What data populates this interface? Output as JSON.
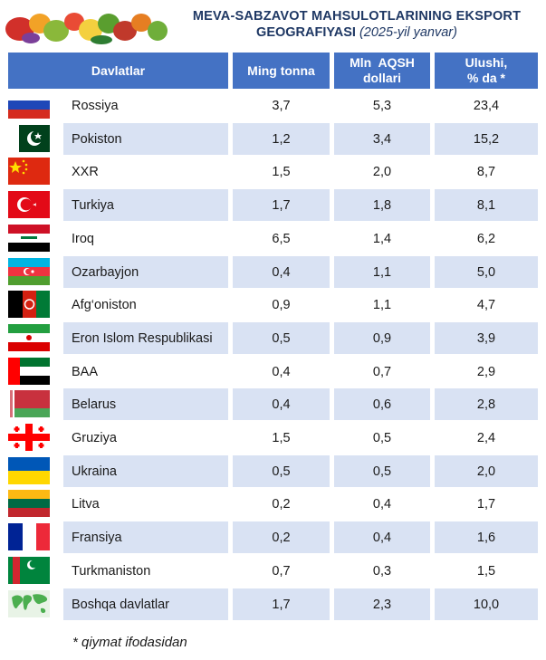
{
  "title": {
    "line1": "MEVA-SABZAVOT MAHSULOTLARINING EKSPORT",
    "line2_bold": "GEOGRAFIYASI",
    "line2_italic": "(2025-yil yanvar)"
  },
  "table": {
    "headers": {
      "country": "Davlatlar",
      "tonnes": "Ming tonna",
      "usd_line1": "Mln  AQSH",
      "usd_line2": "dollari",
      "share_line1": "Ulushi,",
      "share_line2": "% da *"
    },
    "rows": [
      {
        "flag": "russia-flag-icon",
        "country": "Rossiya",
        "tonnes": "3,7",
        "usd": "5,3",
        "share": "23,4"
      },
      {
        "flag": "pakistan-flag-icon",
        "country": "Pokiston",
        "tonnes": "1,2",
        "usd": "3,4",
        "share": "15,2"
      },
      {
        "flag": "china-flag-icon",
        "country": "XXR",
        "tonnes": "1,5",
        "usd": "2,0",
        "share": "8,7"
      },
      {
        "flag": "turkey-flag-icon",
        "country": "Turkiya",
        "tonnes": "1,7",
        "usd": "1,8",
        "share": "8,1"
      },
      {
        "flag": "iraq-flag-icon",
        "country": "Iroq",
        "tonnes": "6,5",
        "usd": "1,4",
        "share": "6,2"
      },
      {
        "flag": "azerbaijan-flag-icon",
        "country": "Ozarbayjon",
        "tonnes": "0,4",
        "usd": "1,1",
        "share": "5,0"
      },
      {
        "flag": "afghanistan-flag-icon",
        "country": "Afg‘oniston",
        "tonnes": "0,9",
        "usd": "1,1",
        "share": "4,7"
      },
      {
        "flag": "iran-flag-icon",
        "country": "Eron Islom Respublikasi",
        "tonnes": "0,5",
        "usd": "0,9",
        "share": "3,9"
      },
      {
        "flag": "uae-flag-icon",
        "country": "BAA",
        "tonnes": "0,4",
        "usd": "0,7",
        "share": "2,9"
      },
      {
        "flag": "belarus-flag-icon",
        "country": "Belarus",
        "tonnes": "0,4",
        "usd": "0,6",
        "share": "2,8"
      },
      {
        "flag": "georgia-flag-icon",
        "country": "Gruziya",
        "tonnes": "1,5",
        "usd": "0,5",
        "share": "2,4"
      },
      {
        "flag": "ukraine-flag-icon",
        "country": "Ukraina",
        "tonnes": "0,5",
        "usd": "0,5",
        "share": "2,0"
      },
      {
        "flag": "lithuania-flag-icon",
        "country": "Litva",
        "tonnes": "0,2",
        "usd": "0,4",
        "share": "1,7"
      },
      {
        "flag": "france-flag-icon",
        "country": "Fransiya",
        "tonnes": "0,2",
        "usd": "0,4",
        "share": "1,6"
      },
      {
        "flag": "turkmenistan-flag-icon",
        "country": "Turkmaniston",
        "tonnes": "0,7",
        "usd": "0,3",
        "share": "1,5"
      },
      {
        "flag": "world-map-icon",
        "country": "Boshqa davlatlar",
        "tonnes": "1,7",
        "usd": "2,3",
        "share": "10,0"
      }
    ]
  },
  "footnote": "* qiymat ifodasidan",
  "colors": {
    "header_bg": "#4472c4",
    "row_shade": "#d9e2f3",
    "title_color": "#1f3864"
  }
}
